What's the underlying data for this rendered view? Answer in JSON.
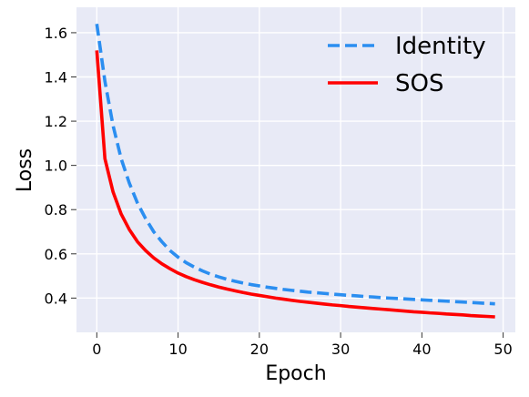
{
  "chart_data": {
    "type": "line",
    "title": "",
    "xlabel": "Epoch",
    "ylabel": "Loss",
    "xlim": [
      -2.5,
      51.5
    ],
    "ylim": [
      0.245,
      1.715
    ],
    "xticks": [
      0,
      10,
      20,
      30,
      40,
      50
    ],
    "yticks": [
      0.4,
      0.6,
      0.8,
      1.0,
      1.2,
      1.4,
      1.6
    ],
    "grid": true,
    "legend_position": "top-right",
    "background": "#e8eaf6",
    "series": [
      {
        "name": "Identity",
        "color": "#2b8ef0",
        "style": "dashed",
        "x": [
          0,
          1,
          2,
          3,
          4,
          5,
          6,
          7,
          8,
          9,
          10,
          11,
          12,
          13,
          14,
          15,
          16,
          17,
          18,
          19,
          20,
          21,
          22,
          23,
          24,
          25,
          26,
          27,
          28,
          29,
          30,
          31,
          32,
          33,
          34,
          35,
          36,
          37,
          38,
          39,
          40,
          41,
          42,
          43,
          44,
          45,
          46,
          47,
          48,
          49
        ],
        "values": [
          1.64,
          1.38,
          1.18,
          1.03,
          0.92,
          0.83,
          0.76,
          0.7,
          0.655,
          0.615,
          0.585,
          0.56,
          0.54,
          0.523,
          0.508,
          0.496,
          0.485,
          0.476,
          0.468,
          0.461,
          0.455,
          0.449,
          0.444,
          0.439,
          0.435,
          0.431,
          0.427,
          0.424,
          0.421,
          0.418,
          0.415,
          0.412,
          0.41,
          0.407,
          0.405,
          0.402,
          0.4,
          0.398,
          0.396,
          0.394,
          0.392,
          0.39,
          0.388,
          0.386,
          0.384,
          0.382,
          0.38,
          0.378,
          0.376,
          0.374
        ]
      },
      {
        "name": "SOS",
        "color": "#ff0000",
        "style": "solid",
        "x": [
          0,
          1,
          2,
          3,
          4,
          5,
          6,
          7,
          8,
          9,
          10,
          11,
          12,
          13,
          14,
          15,
          16,
          17,
          18,
          19,
          20,
          21,
          22,
          23,
          24,
          25,
          26,
          27,
          28,
          29,
          30,
          31,
          32,
          33,
          34,
          35,
          36,
          37,
          38,
          39,
          40,
          41,
          42,
          43,
          44,
          45,
          46,
          47,
          48,
          49
        ],
        "values": [
          1.52,
          1.03,
          0.88,
          0.78,
          0.71,
          0.655,
          0.615,
          0.582,
          0.555,
          0.533,
          0.513,
          0.497,
          0.483,
          0.471,
          0.46,
          0.45,
          0.441,
          0.433,
          0.425,
          0.418,
          0.412,
          0.406,
          0.4,
          0.395,
          0.39,
          0.385,
          0.381,
          0.377,
          0.373,
          0.369,
          0.366,
          0.362,
          0.359,
          0.356,
          0.353,
          0.35,
          0.347,
          0.344,
          0.341,
          0.338,
          0.336,
          0.333,
          0.331,
          0.328,
          0.326,
          0.324,
          0.321,
          0.319,
          0.317,
          0.315
        ]
      }
    ]
  }
}
